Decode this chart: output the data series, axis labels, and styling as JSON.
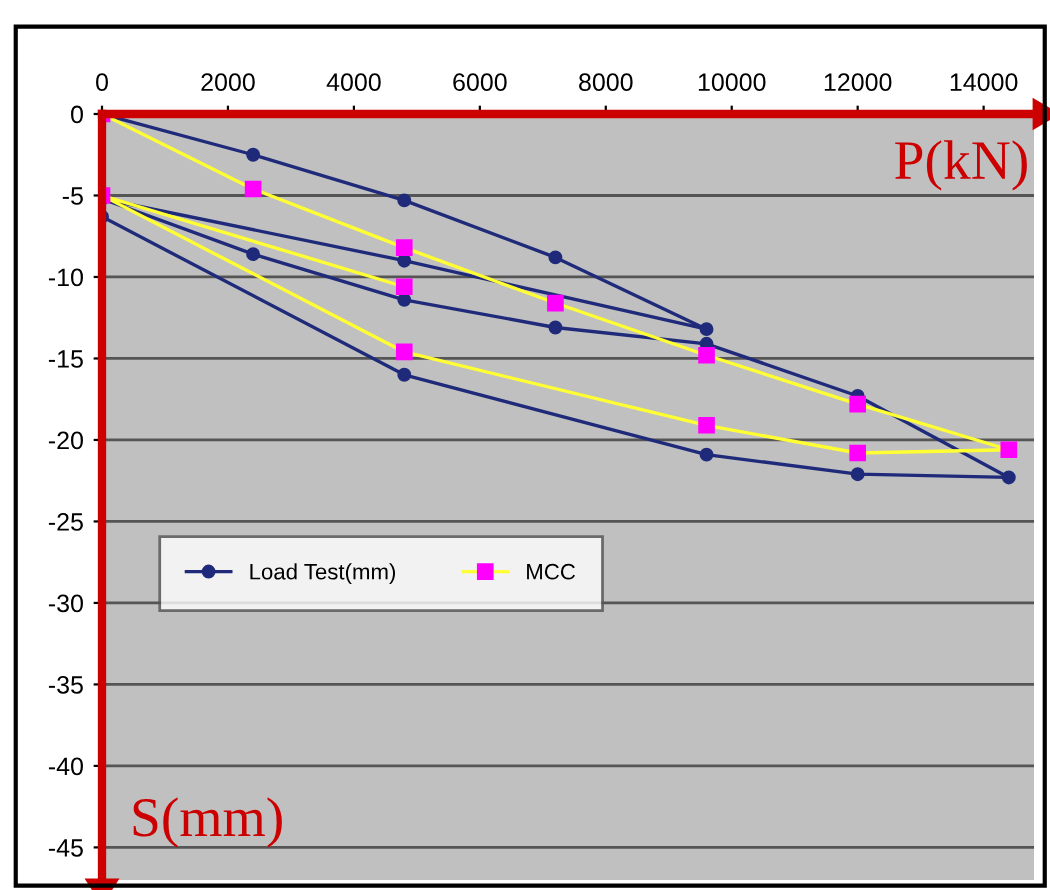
{
  "chart_data": {
    "type": "line",
    "xlabel": "P(kN)",
    "ylabel": "S(mm)",
    "xlim": [
      0,
      14800
    ],
    "xticks": [
      0,
      2000,
      4000,
      6000,
      8000,
      10000,
      12000,
      14000
    ],
    "ylim": [
      -47,
      0
    ],
    "yticks": [
      0,
      -5,
      -10,
      -15,
      -20,
      -25,
      -30,
      -35,
      -40,
      -45
    ],
    "grid": "y",
    "legend": "center left",
    "series": [
      {
        "name": "Load Test(mm)",
        "color": "#1f2a7a",
        "marker": "circle",
        "x": [
          0,
          2400,
          4800,
          7200,
          9600,
          4800,
          0,
          2400,
          4800,
          7200,
          9600,
          12000,
          14400,
          12000,
          9600,
          4800,
          0
        ],
        "values": [
          0,
          -2.5,
          -5.3,
          -8.8,
          -13.2,
          -9.0,
          -5.2,
          -8.6,
          -11.4,
          -13.1,
          -14.1,
          -17.3,
          -22.3,
          -22.1,
          -20.9,
          -16.0,
          -6.3
        ]
      },
      {
        "name": "MCC",
        "color": "#ffff33",
        "marker": "square",
        "x": [
          0,
          2400,
          4800,
          7200,
          9600,
          12000,
          14400,
          12000,
          9600,
          4800,
          0,
          4800
        ],
        "values": [
          0,
          -4.6,
          -8.2,
          -11.6,
          -14.8,
          -17.8,
          -20.6,
          -20.8,
          -19.1,
          -14.6,
          -5.0,
          -10.6
        ]
      }
    ]
  }
}
